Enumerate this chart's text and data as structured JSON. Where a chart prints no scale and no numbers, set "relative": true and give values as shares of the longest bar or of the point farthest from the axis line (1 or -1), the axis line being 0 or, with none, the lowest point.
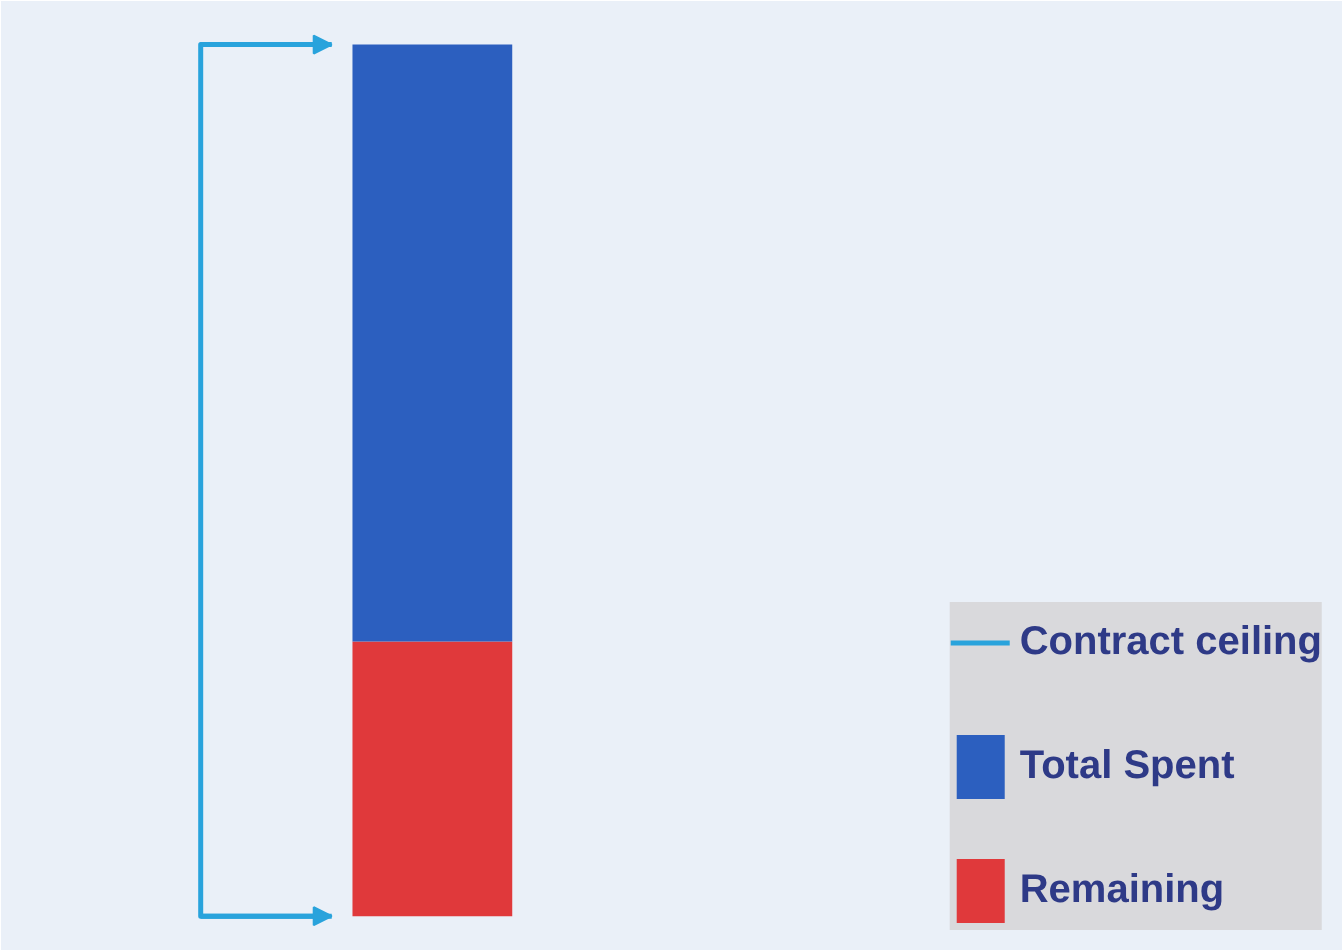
{
  "chart_data": {
    "type": "bar",
    "relative": true,
    "stacked": true,
    "categories": [
      null
    ],
    "series": [
      {
        "name": "Remaining",
        "color": "#e0393b",
        "values": [
          0.315
        ]
      },
      {
        "name": "Total Spent",
        "color": "#2c5fbf",
        "values": [
          0.685
        ]
      }
    ],
    "bands": [
      {
        "axis": "y",
        "from": 0,
        "to": 1,
        "label": "Contract ceiling"
      }
    ],
    "legend": "bottom right"
  }
}
